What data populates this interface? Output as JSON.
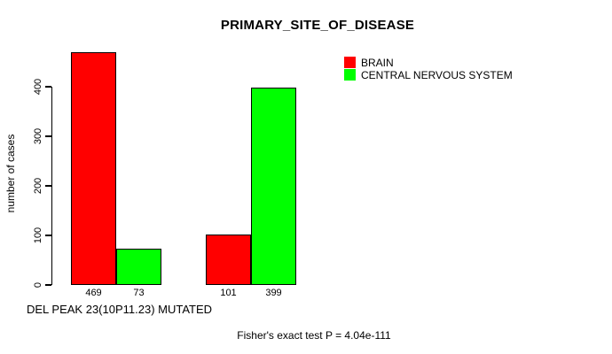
{
  "title": "PRIMARY_SITE_OF_DISEASE",
  "chart_data": {
    "type": "bar",
    "title": "PRIMARY_SITE_OF_DISEASE",
    "ylabel": "number of cases",
    "xlabel": "DEL PEAK 23(10P11.23) MUTATED",
    "yticks": [
      0,
      100,
      200,
      300,
      400
    ],
    "ylim": [
      0,
      473
    ],
    "grid": false,
    "categories": [
      "group-1",
      "group-2"
    ],
    "series": [
      {
        "name": "BRAIN",
        "color": "#ff0000",
        "values": [
          469,
          101
        ]
      },
      {
        "name": "CENTRAL NERVOUS SYSTEM",
        "color": "#00ff00",
        "values": [
          73,
          399
        ]
      }
    ],
    "bar_labels": [
      "469",
      "73",
      "101",
      "399"
    ],
    "legend": {
      "position": "top-right",
      "entries": [
        "BRAIN",
        "CENTRAL NERVOUS SYSTEM"
      ]
    },
    "axis_color": "#000000",
    "text_color": "#000000",
    "background": "#ffffff"
  },
  "caption": "Fisher's exact test P = 4.04e-111"
}
